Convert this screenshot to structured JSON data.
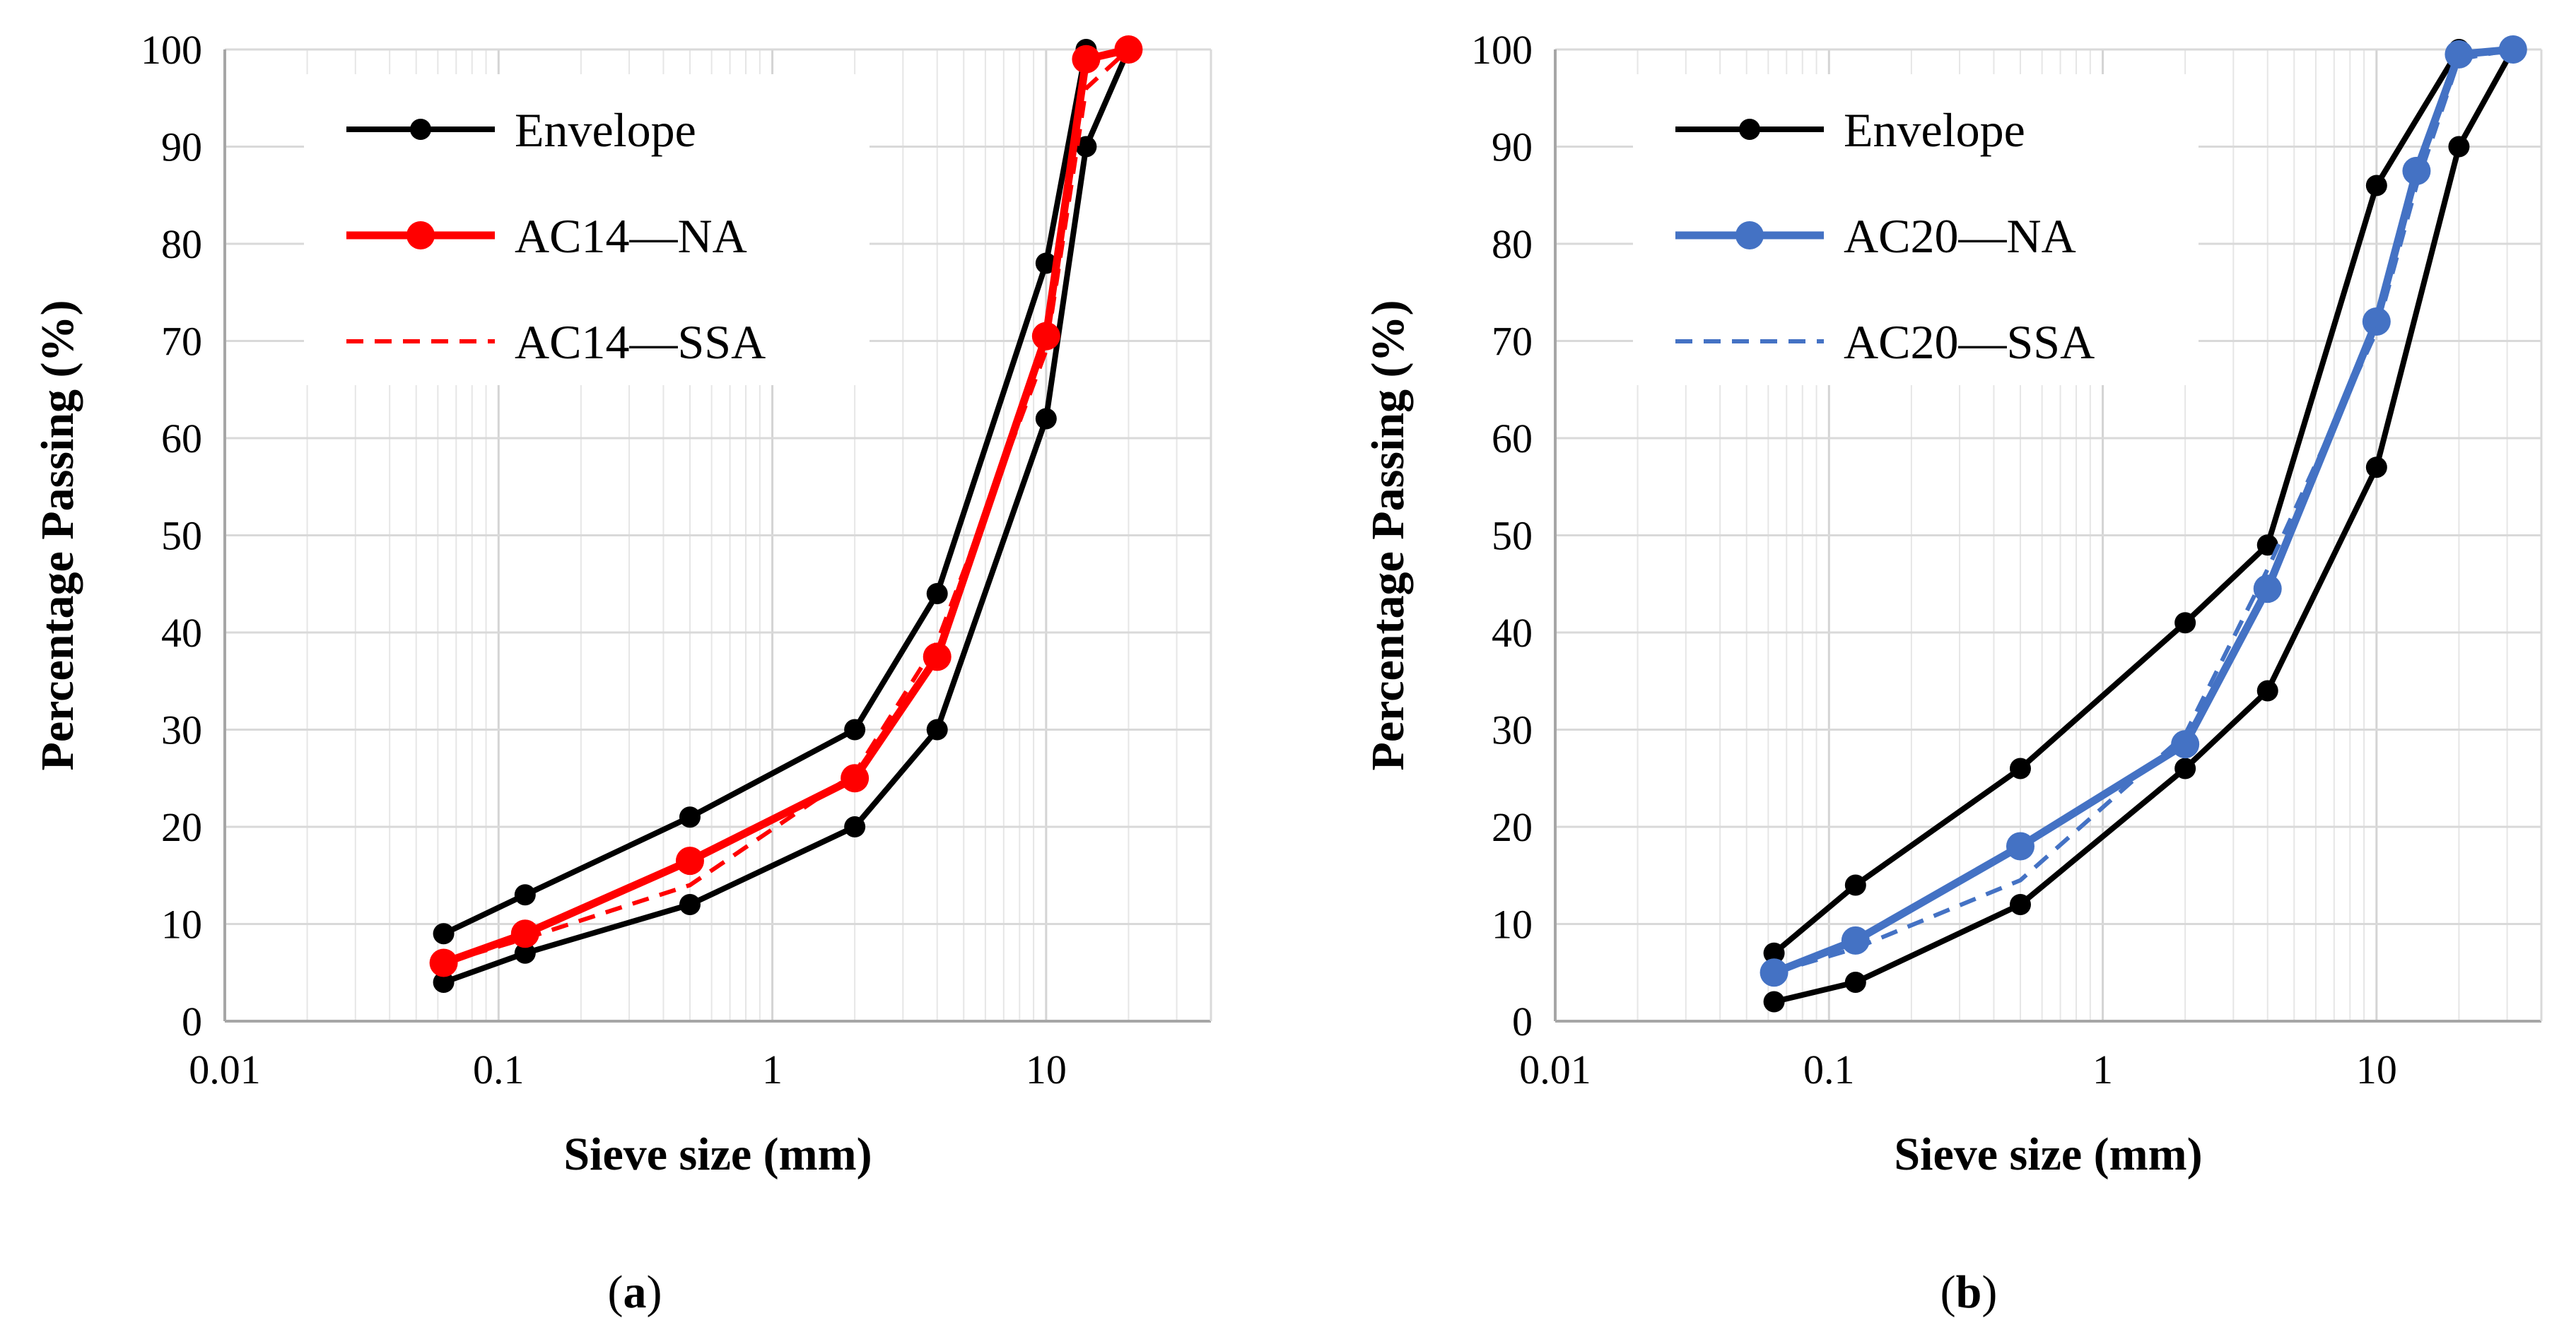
{
  "chart_data": [
    {
      "type": "line",
      "panel": "a",
      "caption_letter": "a",
      "xlabel": "Sieve size (mm)",
      "ylabel": "Percentage Passing (%)",
      "xscale": "log",
      "xlim": [
        0.01,
        40
      ],
      "ylim": [
        0,
        100
      ],
      "x_ticks": [
        "0.01",
        "0.1",
        "1",
        "10"
      ],
      "y_ticks": [
        "0",
        "10",
        "20",
        "30",
        "40",
        "50",
        "60",
        "70",
        "80",
        "90",
        "100"
      ],
      "grid": true,
      "legend_position": "top-left",
      "series": [
        {
          "name": "Envelope",
          "legend": true,
          "color": "#000000",
          "style": "solid",
          "marker": "small",
          "x": [
            0.063,
            0.125,
            0.5,
            2,
            4,
            10,
            14
          ],
          "y": [
            9,
            13,
            21,
            30,
            44,
            78,
            100
          ]
        },
        {
          "name": "Envelope (lower)",
          "legend": false,
          "color": "#000000",
          "style": "solid",
          "marker": "small",
          "x": [
            0.063,
            0.125,
            0.5,
            2,
            4,
            10,
            14,
            20
          ],
          "y": [
            4,
            7,
            12,
            20,
            30,
            62,
            90,
            100
          ]
        },
        {
          "name": "AC14—NA",
          "legend": true,
          "color": "#ff0000",
          "style": "solid",
          "marker": "large",
          "x": [
            0.063,
            0.125,
            0.5,
            2,
            4,
            10,
            14,
            20
          ],
          "y": [
            6,
            9,
            16.5,
            25,
            37.5,
            70.5,
            99,
            100
          ]
        },
        {
          "name": "AC14—SSA",
          "legend": true,
          "color": "#ff0000",
          "style": "dashed",
          "marker": "none",
          "x": [
            0.063,
            0.125,
            0.5,
            2,
            4,
            10,
            14,
            20
          ],
          "y": [
            6,
            8.5,
            14,
            25.5,
            39,
            69,
            96,
            100
          ]
        }
      ]
    },
    {
      "type": "line",
      "panel": "b",
      "caption_letter": "b",
      "xlabel": "Sieve size (mm)",
      "ylabel": "Percentage Passing (%)",
      "xscale": "log",
      "xlim": [
        0.01,
        40
      ],
      "ylim": [
        0,
        100
      ],
      "x_ticks": [
        "0.01",
        "0.1",
        "1",
        "10"
      ],
      "y_ticks": [
        "0",
        "10",
        "20",
        "30",
        "40",
        "50",
        "60",
        "70",
        "80",
        "90",
        "100"
      ],
      "grid": true,
      "legend_position": "top-left",
      "series": [
        {
          "name": "Envelope",
          "legend": true,
          "color": "#000000",
          "style": "solid",
          "marker": "small",
          "x": [
            0.063,
            0.125,
            0.5,
            2,
            4,
            10,
            20
          ],
          "y": [
            7,
            14,
            26,
            41,
            49,
            86,
            100
          ]
        },
        {
          "name": "Envelope (lower)",
          "legend": false,
          "color": "#000000",
          "style": "solid",
          "marker": "small",
          "x": [
            0.063,
            0.125,
            0.5,
            2,
            4,
            10,
            20,
            31.5
          ],
          "y": [
            2,
            4,
            12,
            26,
            34,
            57,
            90,
            100
          ]
        },
        {
          "name": "AC20—NA",
          "legend": true,
          "color": "#4472c4",
          "style": "solid",
          "marker": "large",
          "x": [
            0.063,
            0.125,
            0.5,
            2,
            4,
            10,
            14,
            20,
            31.5
          ],
          "y": [
            5,
            8.3,
            18,
            28.5,
            44.5,
            72,
            87.5,
            99.5,
            100
          ]
        },
        {
          "name": "AC20—SSA",
          "legend": true,
          "color": "#4472c4",
          "style": "dashed",
          "marker": "none",
          "x": [
            0.063,
            0.125,
            0.5,
            2,
            4,
            10,
            14,
            20,
            31.5
          ],
          "y": [
            5,
            7.5,
            14.5,
            29.5,
            46.5,
            71,
            86,
            99,
            100
          ]
        }
      ]
    }
  ]
}
